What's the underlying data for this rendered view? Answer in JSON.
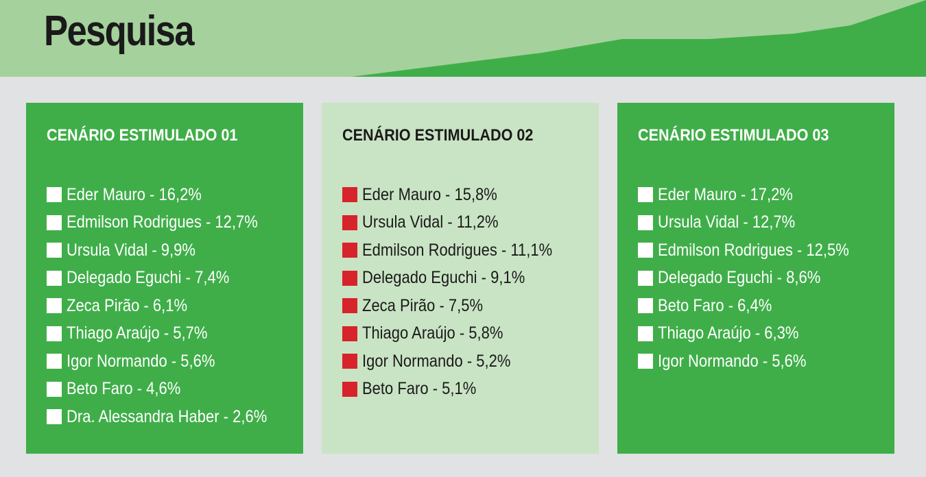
{
  "header": {
    "title": "Pesquisa"
  },
  "colors": {
    "dark_green": "#3fae49",
    "light_green": "#a5d19c",
    "pale_green": "#c9e4c4",
    "gray": "#e1e2e3",
    "red": "#d7232b"
  },
  "panels": [
    {
      "title": "CENÁRIO ESTIMULADO 01",
      "items": [
        {
          "label": "Eder Mauro - 16,2%"
        },
        {
          "label": "Edmilson Rodrigues - 12,7%"
        },
        {
          "label": "Ursula Vidal - 9,9%"
        },
        {
          "label": "Delegado Eguchi - 7,4%"
        },
        {
          "label": "Zeca Pirão - 6,1%"
        },
        {
          "label": "Thiago Araújo - 5,7%"
        },
        {
          "label": "Igor Normando - 5,6%"
        },
        {
          "label": "Beto Faro - 4,6%"
        },
        {
          "label": "Dra. Alessandra Haber - 2,6%"
        }
      ]
    },
    {
      "title": "CENÁRIO ESTIMULADO 02",
      "items": [
        {
          "label": "Eder Mauro - 15,8%"
        },
        {
          "label": "Ursula Vidal - 11,2%"
        },
        {
          "label": "Edmilson Rodrigues - 11,1%"
        },
        {
          "label": "Delegado Eguchi - 9,1%"
        },
        {
          "label": "Zeca Pirão - 7,5%"
        },
        {
          "label": "Thiago Araújo - 5,8%"
        },
        {
          "label": "Igor Normando - 5,2%"
        },
        {
          "label": "Beto Faro - 5,1%"
        }
      ]
    },
    {
      "title": "CENÁRIO ESTIMULADO 03",
      "items": [
        {
          "label": "Eder Mauro - 17,2%"
        },
        {
          "label": "Ursula Vidal - 12,7%"
        },
        {
          "label": "Edmilson Rodrigues - 12,5%"
        },
        {
          "label": "Delegado Eguchi - 8,6%"
        },
        {
          "label": "Beto Faro - 6,4%"
        },
        {
          "label": "Thiago Araújo - 6,3%"
        },
        {
          "label": "Igor Normando - 5,6%"
        }
      ]
    }
  ]
}
